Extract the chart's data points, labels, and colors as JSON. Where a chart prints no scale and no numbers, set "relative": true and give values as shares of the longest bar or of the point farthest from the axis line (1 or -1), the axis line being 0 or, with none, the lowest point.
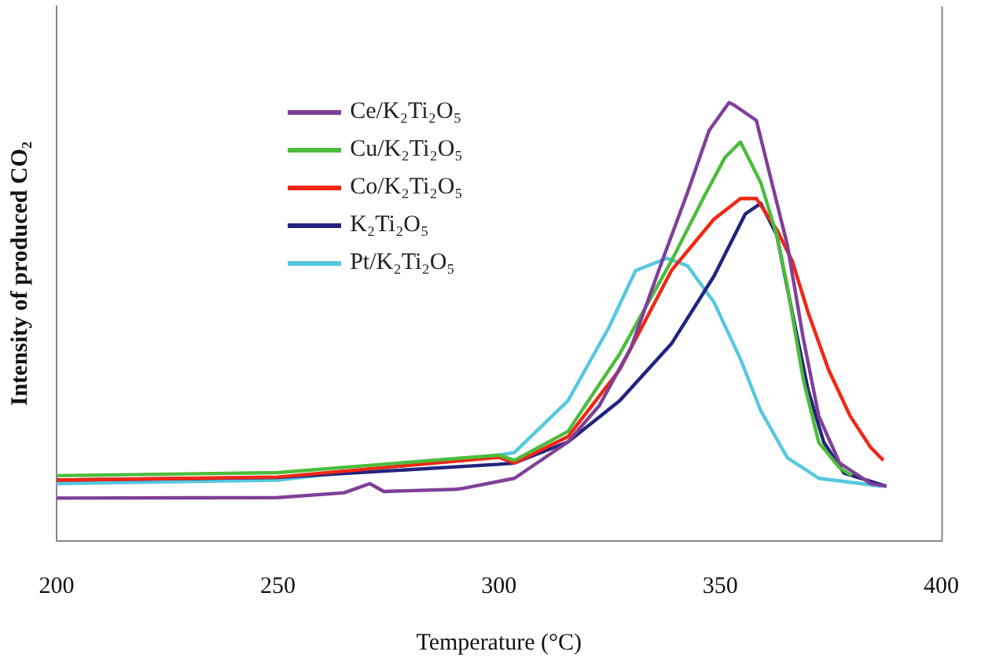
{
  "chart_data": {
    "type": "line",
    "xlabel": "Temperature (°C)",
    "ylabel": "Intensity of produced CO₂",
    "relative": true,
    "xlim": [
      200,
      400
    ],
    "xticks": [
      200,
      250,
      300,
      350,
      400
    ],
    "legend": "top",
    "series": [
      {
        "name": "Ce/K₂Ti₂O₅",
        "color": "#7f3f98",
        "x": [
          200,
          250,
          265,
          270.8,
          274,
          290,
          291.8,
          303.5,
          315.6,
          322.7,
          329.8,
          336.9,
          342.6,
          347.5,
          352,
          353.2,
          358.2,
          361.7,
          365.2,
          368.8,
          372.3,
          377,
          384,
          387.6
        ],
        "values": [
          0.098,
          0.099,
          0.11,
          0.131,
          0.113,
          0.118,
          0.12,
          0.143,
          0.226,
          0.309,
          0.44,
          0.639,
          0.794,
          0.936,
          1,
          0.994,
          0.959,
          0.817,
          0.675,
          0.462,
          0.285,
          0.178,
          0.131,
          0.125
        ]
      },
      {
        "name": "Cu/K₂Ti₂O₅",
        "color": "#4cbc3c",
        "x": [
          200,
          250,
          300,
          303.5,
          315.6,
          327.3,
          339,
          346.1,
          351.1,
          354.6,
          359.2,
          362.8,
          365.2,
          368.8,
          372.3,
          377,
          379.8
        ],
        "values": [
          0.149,
          0.156,
          0.196,
          0.184,
          0.25,
          0.427,
          0.639,
          0.78,
          0.875,
          0.91,
          0.817,
          0.698,
          0.58,
          0.368,
          0.225,
          0.167,
          0.149
        ]
      },
      {
        "name": "Co/K₂Ti₂O₅",
        "color": "#f22614",
        "x": [
          200,
          250,
          300,
          303.5,
          315.6,
          327.3,
          339,
          348.6,
          354.6,
          358.2,
          362.8,
          366.3,
          369.9,
          374.5,
          379.4,
          384,
          386.9
        ],
        "values": [
          0.139,
          0.146,
          0.191,
          0.178,
          0.238,
          0.391,
          0.617,
          0.734,
          0.781,
          0.781,
          0.71,
          0.639,
          0.521,
          0.391,
          0.285,
          0.214,
          0.184
        ]
      },
      {
        "name": "K₂Ti₂O₅",
        "color": "#23237f",
        "x": [
          200,
          250,
          300,
          303.5,
          315.6,
          327.3,
          339,
          348.6,
          355.7,
          359.2,
          362.8,
          366.3,
          369.9,
          373.4,
          378,
          387.6
        ],
        "values": [
          0.139,
          0.145,
          0.175,
          0.178,
          0.226,
          0.32,
          0.45,
          0.604,
          0.746,
          0.77,
          0.698,
          0.521,
          0.344,
          0.226,
          0.155,
          0.125
        ]
      },
      {
        "name": "Pt/K₂Ti₂O₅",
        "color": "#55c8e0",
        "x": [
          200,
          250,
          300,
          303.5,
          315.6,
          324.8,
          330.9,
          338,
          342.6,
          348.6,
          354.6,
          359.2,
          365.2,
          372.3,
          386.5
        ],
        "values": [
          0.131,
          0.139,
          0.196,
          0.202,
          0.32,
          0.486,
          0.617,
          0.645,
          0.628,
          0.545,
          0.415,
          0.297,
          0.19,
          0.143,
          0.125
        ]
      }
    ]
  }
}
